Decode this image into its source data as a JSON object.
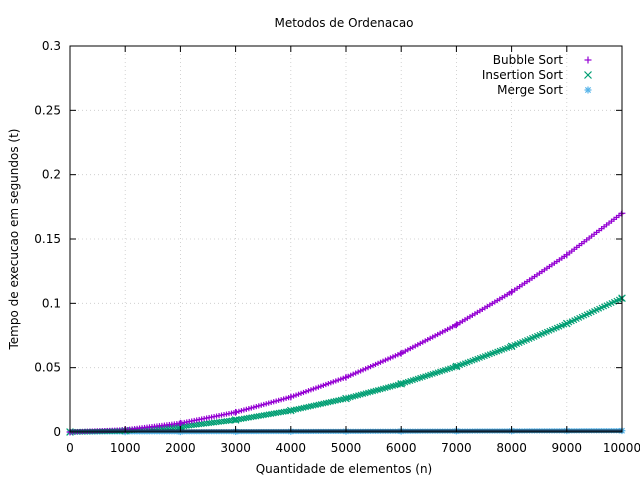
{
  "chart_data": {
    "type": "scatter",
    "title": "Metodos de Ordenacao",
    "xlabel": "Quantidade de elementos (n)",
    "ylabel": "Tempo de execucao em segundos (t)",
    "xlim": [
      0,
      10000
    ],
    "ylim": [
      0,
      0.3
    ],
    "xticks": [
      "0",
      "1000",
      "2000",
      "3000",
      "4000",
      "5000",
      "6000",
      "7000",
      "8000",
      "9000",
      "10000"
    ],
    "yticks": [
      "0",
      "0.05",
      "0.1",
      "0.15",
      "0.2",
      "0.25",
      "0.3"
    ],
    "grid": true,
    "legend_position": "top-right",
    "series": [
      {
        "name": "Bubble Sort",
        "color": "#9400d3",
        "marker": "plus",
        "x": [
          0,
          1000,
          2000,
          3000,
          4000,
          5000,
          6000,
          7000,
          8000,
          9000,
          10000
        ],
        "y": [
          0,
          0.0017,
          0.0068,
          0.0153,
          0.0272,
          0.0425,
          0.0612,
          0.0833,
          0.1088,
          0.1377,
          0.17
        ]
      },
      {
        "name": "Insertion Sort",
        "color": "#009e73",
        "marker": "cross",
        "x": [
          0,
          1000,
          2000,
          3000,
          4000,
          5000,
          6000,
          7000,
          8000,
          9000,
          10000
        ],
        "y": [
          0,
          0.00104,
          0.00416,
          0.00936,
          0.01664,
          0.026,
          0.03744,
          0.05096,
          0.06656,
          0.08424,
          0.104
        ]
      },
      {
        "name": "Merge Sort",
        "color": "#56b4e9",
        "marker": "asterisk",
        "x": [
          0,
          1000,
          2000,
          3000,
          4000,
          5000,
          6000,
          7000,
          8000,
          9000,
          10000
        ],
        "y": [
          0,
          0.0001,
          0.0002,
          0.0003,
          0.0004,
          0.0005,
          0.0006,
          0.0007,
          0.0008,
          0.0009,
          0.001
        ]
      }
    ]
  }
}
